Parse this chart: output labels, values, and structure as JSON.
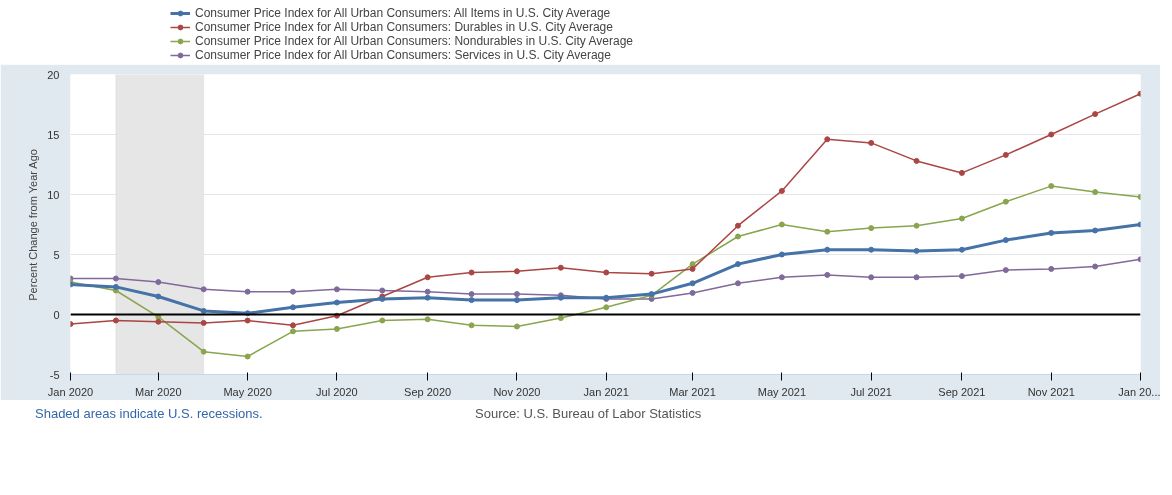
{
  "chart_data": {
    "type": "line",
    "ylabel": "Percent Change from Year Ago",
    "x": [
      "2020-01",
      "2020-02",
      "2020-03",
      "2020-04",
      "2020-05",
      "2020-06",
      "2020-07",
      "2020-08",
      "2020-09",
      "2020-10",
      "2020-11",
      "2020-12",
      "2021-01",
      "2021-02",
      "2021-03",
      "2021-04",
      "2021-05",
      "2021-06",
      "2021-07",
      "2021-08",
      "2021-09",
      "2021-10",
      "2021-11",
      "2021-12",
      "2022-01"
    ],
    "series": [
      {
        "name": "Consumer Price Index for All Urban Consumers: All Items in U.S. City Average",
        "color": "#4572a7",
        "values": [
          2.5,
          2.3,
          1.5,
          0.3,
          0.1,
          0.6,
          1.0,
          1.3,
          1.4,
          1.2,
          1.2,
          1.4,
          1.4,
          1.7,
          2.6,
          4.2,
          5.0,
          5.4,
          5.4,
          5.3,
          5.4,
          6.2,
          6.8,
          7.0,
          7.5
        ]
      },
      {
        "name": "Consumer Price Index for All Urban Consumers: Durables in U.S. City Average",
        "color": "#aa4643",
        "values": [
          -0.8,
          -0.5,
          -0.6,
          -0.7,
          -0.5,
          -0.9,
          -0.1,
          1.5,
          3.1,
          3.5,
          3.6,
          3.9,
          3.5,
          3.4,
          3.8,
          7.4,
          10.3,
          14.6,
          14.3,
          12.8,
          11.8,
          13.3,
          15.0,
          16.7,
          18.4
        ]
      },
      {
        "name": "Consumer Price Index for All Urban Consumers: Nondurables in U.S. City Average",
        "color": "#89a54e",
        "values": [
          2.7,
          2.0,
          -0.2,
          -3.1,
          -3.5,
          -1.4,
          -1.2,
          -0.5,
          -0.4,
          -0.9,
          -1.0,
          -0.3,
          0.6,
          1.6,
          4.2,
          6.5,
          7.5,
          6.9,
          7.2,
          7.4,
          8.0,
          9.4,
          10.7,
          10.2,
          9.8
        ]
      },
      {
        "name": "Consumer Price Index for All Urban Consumers: Services in U.S. City Average",
        "color": "#80699b",
        "values": [
          3.0,
          3.0,
          2.7,
          2.1,
          1.9,
          1.9,
          2.1,
          2.0,
          1.9,
          1.7,
          1.7,
          1.6,
          1.3,
          1.3,
          1.8,
          2.6,
          3.1,
          3.3,
          3.1,
          3.1,
          3.2,
          3.7,
          3.8,
          4.0,
          4.6
        ]
      }
    ],
    "xlim": [
      "2020-01",
      "2022-01"
    ],
    "xticks": [
      {
        "value": "2020-01",
        "label": "Jan 2020"
      },
      {
        "value": "2020-03",
        "label": "Mar 2020"
      },
      {
        "value": "2020-05",
        "label": "May 2020"
      },
      {
        "value": "2020-07",
        "label": "Jul 2020"
      },
      {
        "value": "2020-09",
        "label": "Sep 2020"
      },
      {
        "value": "2020-11",
        "label": "Nov 2020"
      },
      {
        "value": "2021-01",
        "label": "Jan 2021"
      },
      {
        "value": "2021-03",
        "label": "Mar 2021"
      },
      {
        "value": "2021-05",
        "label": "May 2021"
      },
      {
        "value": "2021-07",
        "label": "Jul 2021"
      },
      {
        "value": "2021-09",
        "label": "Sep 2021"
      },
      {
        "value": "2021-11",
        "label": "Nov 2021"
      },
      {
        "value": "2022-01",
        "label": "Jan 20..."
      }
    ],
    "ylim": [
      -5,
      20
    ],
    "yticks": [
      -5,
      0,
      5,
      10,
      15,
      20
    ],
    "ref_lines": [
      {
        "axis": "y",
        "value": 0,
        "color": "#000000"
      }
    ],
    "bands": [
      {
        "axis": "x",
        "from": "2020-02",
        "to": "2020-04",
        "color": "#e6e6e6"
      }
    ],
    "annotations": [
      "Shaded areas indicate U.S. recessions.",
      "Source: U.S. Bureau of Labor Statistics"
    ],
    "grid": "y",
    "legend": "top left",
    "marker": "circle",
    "line_style": "solid"
  }
}
